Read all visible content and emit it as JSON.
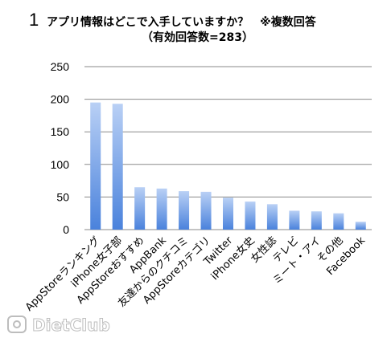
{
  "title": {
    "number": "1",
    "line1": "アプリ情報はどこで入手していますか？　※複数回答",
    "line2": "（有効回答数=283）"
  },
  "watermark": "DietClub",
  "chart_data": {
    "type": "bar",
    "title": "アプリ情報はどこで入手していますか？　※複数回答（有効回答数=283）",
    "categories": [
      "AppStoreランキング",
      "iPhone女子部",
      "AppStoreおすすめ",
      "AppBank",
      "友達からのクチコミ",
      "AppStoreカテゴリ",
      "Twitter",
      "iPhone女史",
      "女性誌",
      "テレビ",
      "ミート・アイ",
      "その他",
      "Facebook"
    ],
    "values": [
      195,
      193,
      65,
      63,
      59,
      58,
      49,
      43,
      39,
      29,
      28,
      25,
      12
    ],
    "ylim": [
      0,
      250
    ],
    "yticks": [
      0,
      50,
      100,
      150,
      200,
      250
    ],
    "grid": true,
    "colors": {
      "bar_light": "#b9d0f5",
      "bar_dark": "#4a82dc",
      "grid": "#8a8a8a"
    }
  }
}
